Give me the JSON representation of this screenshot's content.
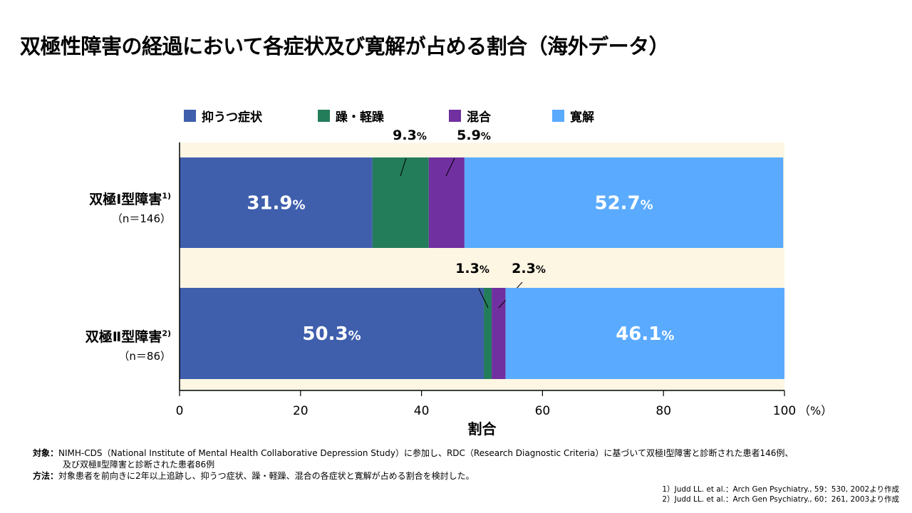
{
  "title": "双極性障害の経過において各症状及び寛解が占める割合（海外データ）",
  "chart_data": {
    "type": "bar",
    "orientation": "horizontal",
    "stacked": true,
    "categories": [
      {
        "label": "双極Ⅰ型障害",
        "ref": "1)",
        "n": "（n＝146）"
      },
      {
        "label": "双極Ⅱ型障害",
        "ref": "2)",
        "n": "（n＝86）"
      }
    ],
    "series": [
      {
        "name": "抑うつ症状",
        "color": "#3f5fad",
        "values": [
          31.9,
          50.3
        ]
      },
      {
        "name": "躁・軽躁",
        "color": "#237c5a",
        "values": [
          9.3,
          1.3
        ]
      },
      {
        "name": "混合",
        "color": "#7030a0",
        "values": [
          5.9,
          2.3
        ]
      },
      {
        "name": "寛解",
        "color": "#5aabff",
        "values": [
          52.7,
          46.1
        ]
      }
    ],
    "value_suffix": "%",
    "xlabel": "割合",
    "xunit": "（%）",
    "xlim": [
      0,
      100
    ],
    "xticks": [
      "0",
      "20",
      "40",
      "60",
      "80",
      "100"
    ],
    "legend": "top",
    "background": "#fdf6e3"
  },
  "notes": {
    "subject_key": "対象：",
    "subject_line1": "NIMH-CDS（National Institute of Mental Health Collaborative Depression Study）に参加し、RDC（Research Diagnostic Criteria）に基づいて双極Ⅰ型障害と診断された患者146例、",
    "subject_line2": "及び双極Ⅱ型障害と診断された患者86例",
    "method_key": "方法：",
    "method": "対象患者を前向きに2年以上追跡し、抑うつ症状、躁・軽躁、混合の各症状と寛解が占める割合を検討した。"
  },
  "refs": [
    "1）Judd LL. et al.：Arch Gen Psychiatry., 59：530, 2002より作成",
    "2）Judd LL. et al.：Arch Gen Psychiatry., 60：261, 2003より作成"
  ]
}
